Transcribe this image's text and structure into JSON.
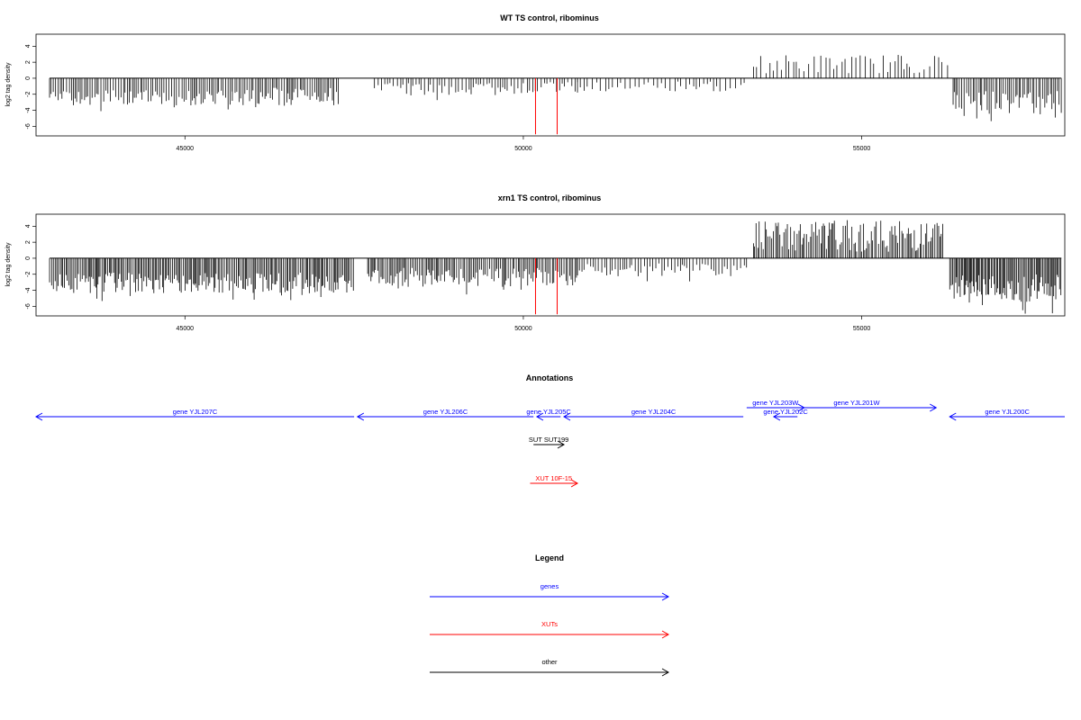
{
  "colors": {
    "genes": "#0000ff",
    "XUTs": "#ff0000",
    "other": "#000000",
    "bars": "#000000",
    "highlight": "#ff0000"
  },
  "chart_data": [
    {
      "type": "bar",
      "title": "WT TS control, ribominus",
      "ylabel": "log2 tag density",
      "xlim": [
        42800,
        58000
      ],
      "ylim": [
        -7.2,
        5.5
      ],
      "xticks": [
        45000,
        50000,
        55000
      ],
      "xtick_labels": [
        "45000",
        "50000",
        "55000"
      ],
      "yticks": [
        -6,
        -4,
        -2,
        0,
        2,
        4
      ],
      "ytick_labels": [
        "-6",
        "-4",
        "-2",
        "0",
        "2",
        "4"
      ],
      "baseline": {
        "x_start": 43000,
        "x_end": 57950,
        "y": 0
      },
      "highlight_lines": [
        {
          "x": 50180,
          "y": -7.0
        },
        {
          "x": 50500,
          "y": -7.0
        }
      ],
      "segments": [
        {
          "x0": 43000,
          "x1": 45700,
          "mode": "neg",
          "yrange": [
            -1.5,
            -4.2
          ],
          "spacing": 32
        },
        {
          "x0": 45700,
          "x1": 47300,
          "mode": "neg",
          "yrange": [
            -1.2,
            -4.4
          ],
          "spacing": 30
        },
        {
          "x0": 47800,
          "x1": 49200,
          "mode": "neg",
          "yrange": [
            -0.6,
            -2.8
          ],
          "spacing": 45
        },
        {
          "x0": 49200,
          "x1": 50800,
          "mode": "neg",
          "yrange": [
            -0.5,
            -2.4
          ],
          "spacing": 45
        },
        {
          "x0": 50800,
          "x1": 53300,
          "mode": "neg",
          "yrange": [
            -0.4,
            -2.2
          ],
          "spacing": 60
        },
        {
          "x0": 53400,
          "x1": 56300,
          "mode": "pos",
          "yrange": [
            0.6,
            3.0
          ],
          "spacing": 60
        },
        {
          "x0": 56350,
          "x1": 57950,
          "mode": "neg",
          "yrange": [
            -1.6,
            -5.8
          ],
          "spacing": 28
        }
      ]
    },
    {
      "type": "bar",
      "title": "xrn1 TS control, ribominus",
      "ylabel": "log2 tag density",
      "xlim": [
        42800,
        58000
      ],
      "ylim": [
        -7.2,
        5.5
      ],
      "xticks": [
        45000,
        50000,
        55000
      ],
      "xtick_labels": [
        "45000",
        "50000",
        "55000"
      ],
      "yticks": [
        -6,
        -4,
        -2,
        0,
        2,
        4
      ],
      "ytick_labels": [
        "-6",
        "-4",
        "-2",
        "0",
        "2",
        "4"
      ],
      "baseline": {
        "x_start": 43000,
        "x_end": 57950,
        "y": 0
      },
      "highlight_lines": [
        {
          "x": 50180,
          "y": -7.0
        },
        {
          "x": 50500,
          "y": -7.0
        }
      ],
      "segments": [
        {
          "x0": 43000,
          "x1": 47500,
          "mode": "neg",
          "yrange": [
            -1.8,
            -5.5
          ],
          "spacing": 22
        },
        {
          "x0": 47700,
          "x1": 50800,
          "mode": "neg",
          "yrange": [
            -1.2,
            -4.6
          ],
          "spacing": 25
        },
        {
          "x0": 50800,
          "x1": 53300,
          "mode": "neg",
          "yrange": [
            -0.6,
            -3.0
          ],
          "spacing": 40
        },
        {
          "x0": 53400,
          "x1": 56200,
          "mode": "pos",
          "yrange": [
            0.8,
            4.8
          ],
          "spacing": 25
        },
        {
          "x0": 56300,
          "x1": 57950,
          "mode": "neg",
          "yrange": [
            -2.0,
            -7.0
          ],
          "spacing": 18
        }
      ]
    }
  ],
  "annotations": {
    "title": "Annotations",
    "features": [
      {
        "label": "gene YJL207C",
        "type": "gene",
        "x0": 42800,
        "x1": 47500,
        "dir": "left",
        "row": 0
      },
      {
        "label": "gene YJL206C",
        "type": "gene",
        "x0": 47550,
        "x1": 50150,
        "dir": "left",
        "row": 0
      },
      {
        "label": "gene YJL205C",
        "type": "gene",
        "x0": 50200,
        "x1": 50550,
        "dir": "left",
        "row": 0
      },
      {
        "label": "gene YJL204C",
        "type": "gene",
        "x0": 50600,
        "x1": 53250,
        "dir": "left",
        "row": 0
      },
      {
        "label": "gene YJL203W",
        "type": "gene",
        "x0": 53300,
        "x1": 54150,
        "dir": "right",
        "row": -1
      },
      {
        "label": "gene YJL202C",
        "type": "gene",
        "x0": 53700,
        "x1": 54050,
        "dir": "left",
        "row": 0
      },
      {
        "label": "gene YJL201W",
        "type": "gene",
        "x0": 53750,
        "x1": 56100,
        "dir": "right",
        "row": -1
      },
      {
        "label": "gene YJL200C",
        "type": "gene",
        "x0": 56300,
        "x1": 58000,
        "dir": "left",
        "row": 0
      },
      {
        "label": "SUT SUT199",
        "type": "other",
        "x0": 50150,
        "x1": 50600,
        "dir": "right",
        "row": 1
      },
      {
        "label": "XUT 10F-15",
        "type": "XUT",
        "x0": 50100,
        "x1": 50800,
        "dir": "right",
        "row": 2
      }
    ]
  },
  "legend": {
    "title": "Legend",
    "items": [
      {
        "label": "genes",
        "type": "gene"
      },
      {
        "label": "XUTs",
        "type": "XUT"
      },
      {
        "label": "other",
        "type": "other"
      }
    ]
  }
}
